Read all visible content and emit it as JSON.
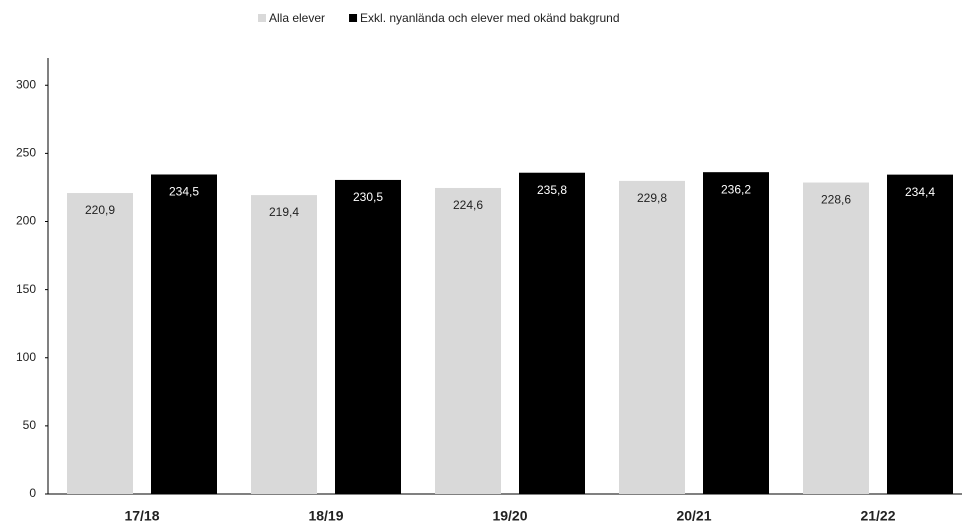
{
  "chart_data": {
    "type": "bar",
    "categories": [
      "17/18",
      "18/19",
      "19/20",
      "20/21",
      "21/22"
    ],
    "series": [
      {
        "name": "Alla elever",
        "color": "#d9d9d9",
        "values": [
          220.9,
          219.4,
          224.6,
          229.8,
          228.6
        ],
        "value_labels": [
          "220,9",
          "219,4",
          "224,6",
          "229,8",
          "228,6"
        ]
      },
      {
        "name": "Exkl. nyanlända och elever med okänd bakgrund",
        "color": "#000000",
        "values": [
          234.5,
          230.5,
          235.8,
          236.2,
          234.4
        ],
        "value_labels": [
          "234,5",
          "230,5",
          "235,8",
          "236,2",
          "234,4"
        ]
      }
    ],
    "ylim": [
      0,
      320
    ],
    "yticks": [
      0,
      50,
      100,
      150,
      200,
      250,
      300
    ],
    "grid": false,
    "legend": "top"
  }
}
